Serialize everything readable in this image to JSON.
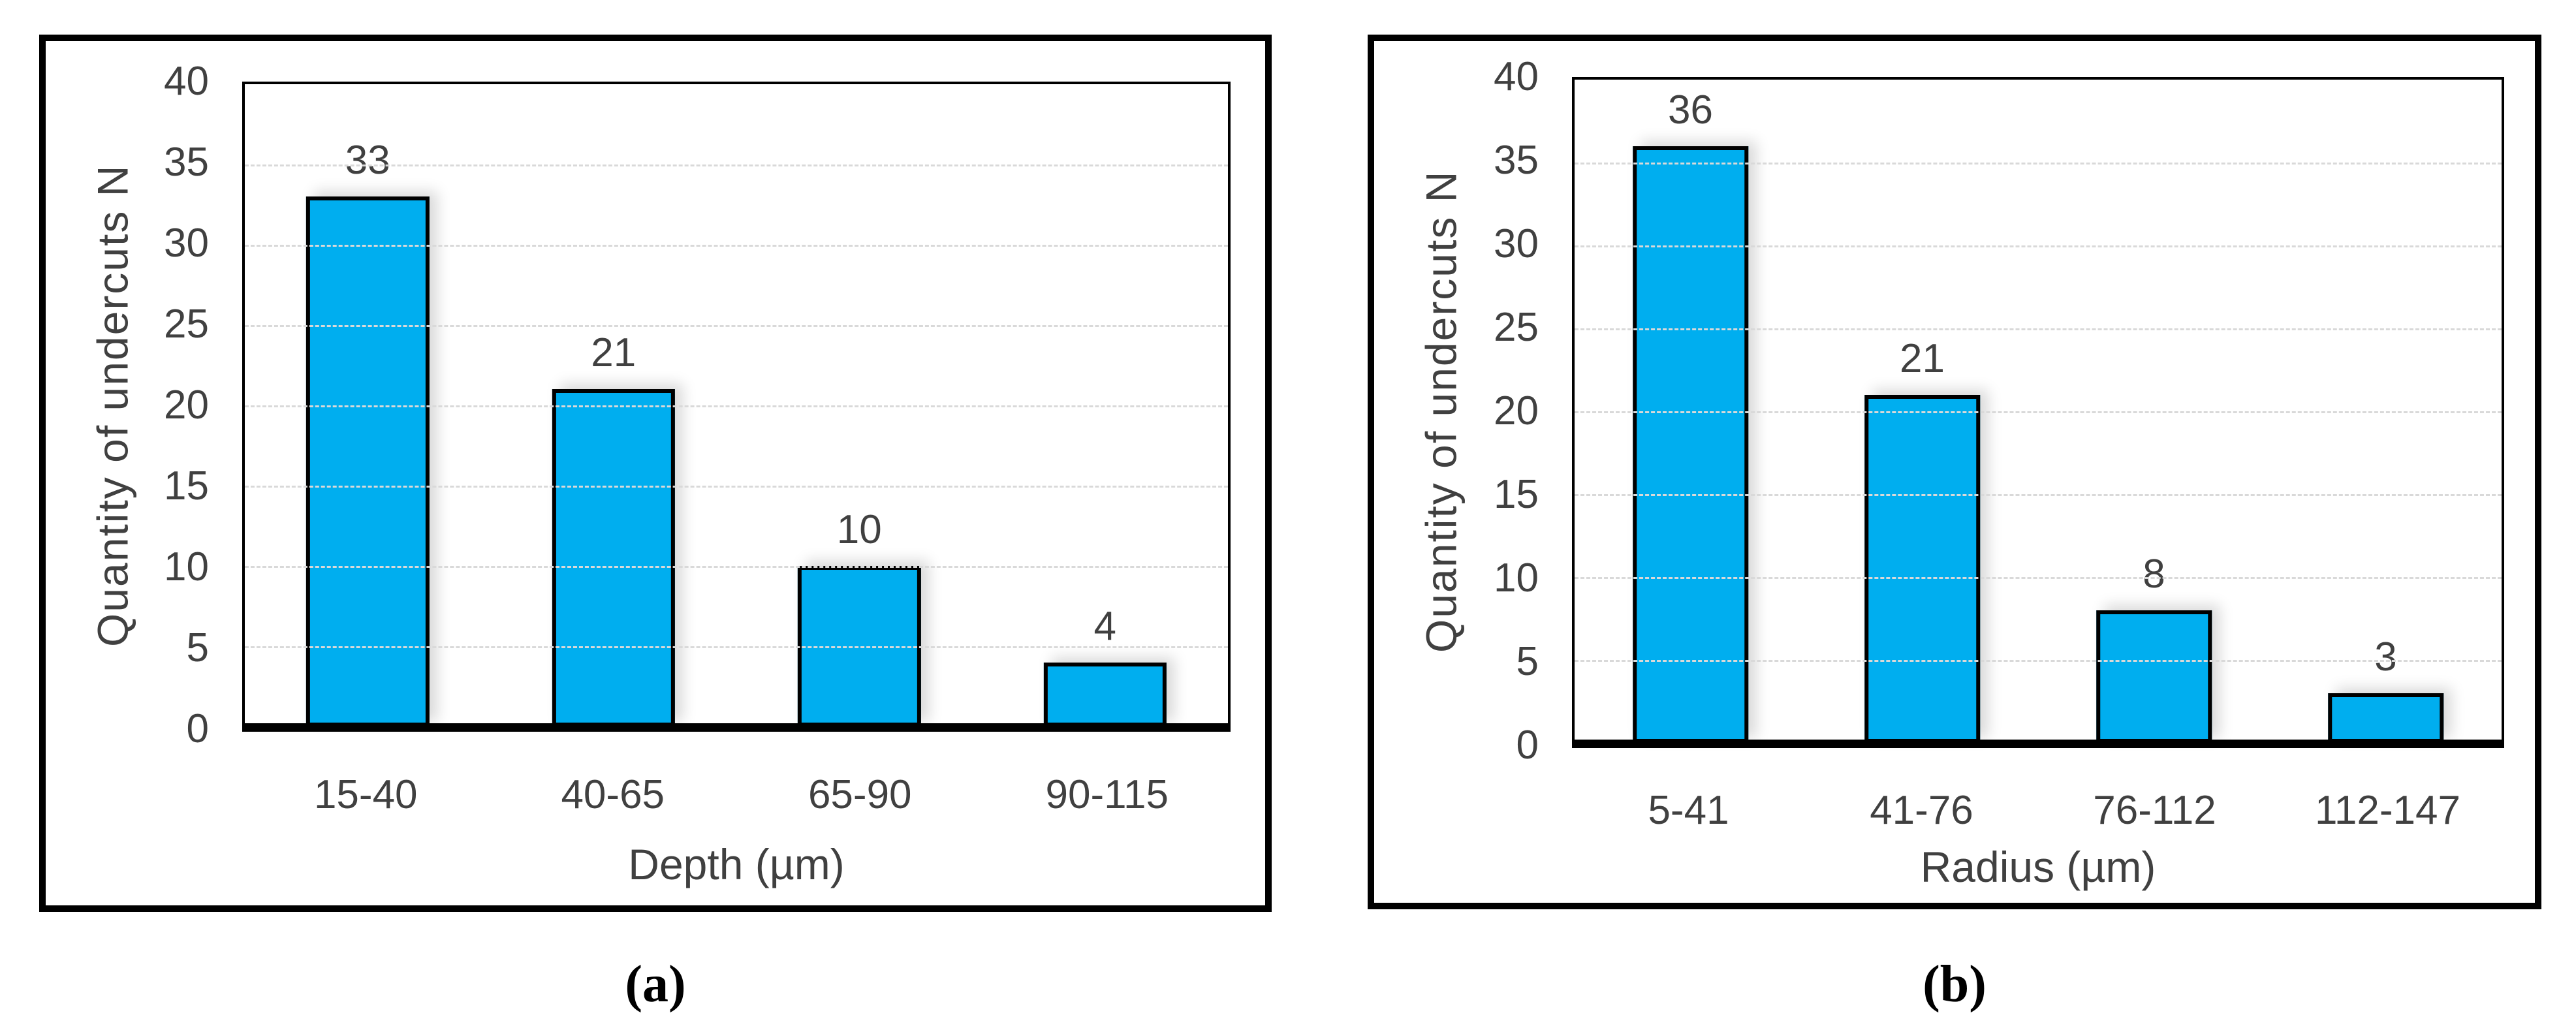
{
  "figure": {
    "captions": [
      "(a)",
      "(b)"
    ]
  },
  "colors": {
    "bar_fill": "#00AEEF",
    "bar_border": "#000000",
    "axis_text": "#404040",
    "gridline": "#d9d9d9",
    "panel_border": "#000000",
    "background": "#ffffff"
  },
  "chart_data": [
    {
      "type": "bar",
      "title": "",
      "categories": [
        "15-40",
        "40-65",
        "65-90",
        "90-115"
      ],
      "values": [
        33,
        21,
        10,
        4
      ],
      "xlabel": "Depth (µm)",
      "ylabel": "Quantity of undercuts N",
      "ylim": [
        0,
        40
      ],
      "yticks": [
        0,
        5,
        10,
        15,
        20,
        25,
        30,
        35,
        40
      ],
      "grid": true,
      "legend": "none",
      "bar_color": "#00AEEF"
    },
    {
      "type": "bar",
      "title": "",
      "categories": [
        "5-41",
        "41-76",
        "76-112",
        "112-147"
      ],
      "values": [
        36,
        21,
        8,
        3
      ],
      "xlabel": "Radius (µm)",
      "ylabel": "Quantity of undercuts N",
      "ylim": [
        0,
        40
      ],
      "yticks": [
        0,
        5,
        10,
        15,
        20,
        25,
        30,
        35,
        40
      ],
      "grid": true,
      "legend": "none",
      "bar_color": "#00AEEF"
    }
  ]
}
